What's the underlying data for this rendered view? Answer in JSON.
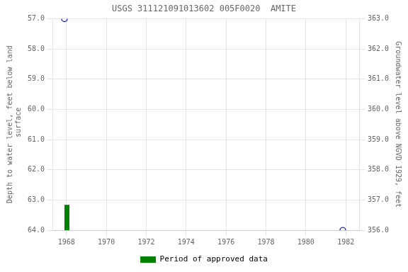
{
  "chart_data": {
    "type": "scatter",
    "title": "USGS 311121091013602 005F0020  AMITE",
    "y_label": "Depth to water level, feet below land\n surface",
    "y2_label": "Groundwater level above NGVD 1929, feet",
    "x": [
      1967.9,
      1981.85
    ],
    "values": [
      57.0,
      64.0
    ],
    "color": "#0000cc",
    "marker": "circle",
    "xlim": [
      1967.3,
      1982.7
    ],
    "xticks": [
      1968,
      1970,
      1972,
      1974,
      1976,
      1978,
      1980,
      1982
    ],
    "ylim": [
      64.0,
      57.0
    ],
    "yticks": [
      {
        "value": 57.0,
        "label": "57.0"
      },
      {
        "value": 58.0,
        "label": "58.0"
      },
      {
        "value": 59.0,
        "label": "59.0"
      },
      {
        "value": 60.0,
        "label": "60.0"
      },
      {
        "value": 61.0,
        "label": "61.0"
      },
      {
        "value": 62.0,
        "label": "62.0"
      },
      {
        "value": 63.0,
        "label": "63.0"
      },
      {
        "value": 64.0,
        "label": "64.0"
      }
    ],
    "y2lim": [
      356.0,
      363.0
    ],
    "y2ticks": [
      {
        "value": 363.0,
        "label": "363.0"
      },
      {
        "value": 362.0,
        "label": "362.0"
      },
      {
        "value": 361.0,
        "label": "361.0"
      },
      {
        "value": 360.0,
        "label": "360.0"
      },
      {
        "value": 359.0,
        "label": "359.0"
      },
      {
        "value": 358.0,
        "label": "358.0"
      },
      {
        "value": 357.0,
        "label": "357.0"
      },
      {
        "value": 356.0,
        "label": "356.0"
      }
    ],
    "grid": true,
    "legend": "bottom",
    "approved_periods": [
      {
        "start": 1967.9,
        "end": 1968.15
      }
    ],
    "approved_label": "Period of approved data",
    "approved_color": "#008000"
  }
}
